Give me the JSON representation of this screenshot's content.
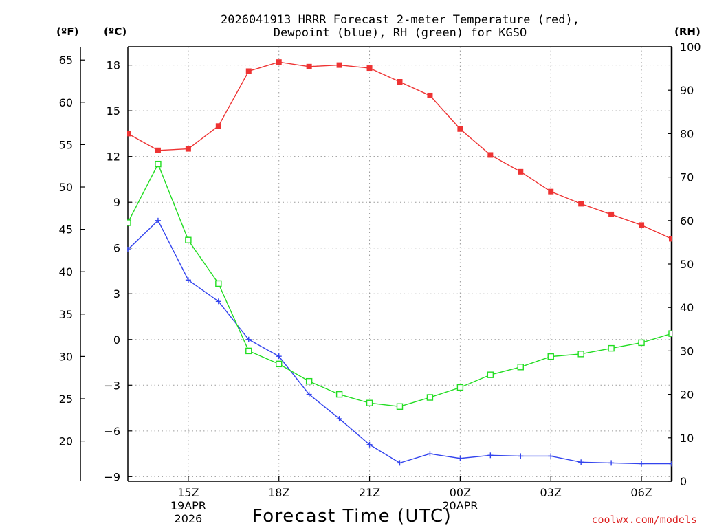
{
  "chart_data": {
    "type": "line",
    "title_line1": "2026041913 HRRR Forecast 2-meter Temperature (red),",
    "title_line2": "Dewpoint (blue), RH (green) for KGSO",
    "xlabel": "Forecast Time (UTC)",
    "watermark": "coolwx.com/models",
    "left_outer_axis": {
      "label": "(ºF)",
      "ticks": [
        20,
        25,
        30,
        35,
        40,
        45,
        50,
        55,
        60,
        65
      ]
    },
    "left_axis": {
      "label": "(ºC)",
      "ylim": [
        -9.3,
        19.2
      ],
      "ticks": [
        -9,
        -6,
        -3,
        0,
        3,
        6,
        9,
        12,
        15,
        18
      ]
    },
    "right_axis": {
      "label": "(RH)",
      "ylim": [
        0,
        100
      ],
      "ticks": [
        0,
        10,
        20,
        30,
        40,
        50,
        60,
        70,
        80,
        90,
        100
      ]
    },
    "x": [
      13,
      14,
      15,
      16,
      17,
      18,
      19,
      20,
      21,
      22,
      23,
      24,
      25,
      26,
      27,
      28,
      29,
      30,
      31
    ],
    "xlim": [
      13,
      31
    ],
    "x_ticks": [
      {
        "x": 15,
        "label": "15Z",
        "sub1": "19APR",
        "sub2": "2026"
      },
      {
        "x": 18,
        "label": "18Z",
        "sub1": "",
        "sub2": ""
      },
      {
        "x": 21,
        "label": "21Z",
        "sub1": "",
        "sub2": ""
      },
      {
        "x": 24,
        "label": "00Z",
        "sub1": "20APR",
        "sub2": ""
      },
      {
        "x": 27,
        "label": "03Z",
        "sub1": "",
        "sub2": ""
      },
      {
        "x": 30,
        "label": "06Z",
        "sub1": "",
        "sub2": ""
      }
    ],
    "series": [
      {
        "name": "Temperature",
        "axis": "celsius",
        "color": "#ee3333",
        "marker": "filled-square",
        "values": [
          13.5,
          12.4,
          12.5,
          14.0,
          17.6,
          18.2,
          17.9,
          18.0,
          17.8,
          16.9,
          16.0,
          13.8,
          12.1,
          11.0,
          9.7,
          8.9,
          8.2,
          7.5,
          6.6
        ]
      },
      {
        "name": "Dewpoint",
        "axis": "celsius",
        "color": "#3344ee",
        "marker": "plus",
        "values": [
          5.9,
          7.8,
          3.9,
          2.5,
          0.0,
          -1.1,
          -3.6,
          -5.2,
          -6.9,
          -8.1,
          -7.5,
          -7.8,
          -7.6,
          -7.65,
          -7.65,
          -8.05,
          -8.1,
          -8.15,
          -8.15
        ]
      },
      {
        "name": "RH",
        "axis": "rh",
        "color": "#22dd22",
        "marker": "open-square",
        "values": [
          59.5,
          73.0,
          55.5,
          45.5,
          30.0,
          27.0,
          23.0,
          20.0,
          18.0,
          17.2,
          19.3,
          21.6,
          24.5,
          26.3,
          28.7,
          29.3,
          30.6,
          31.9,
          34.0
        ]
      }
    ]
  }
}
